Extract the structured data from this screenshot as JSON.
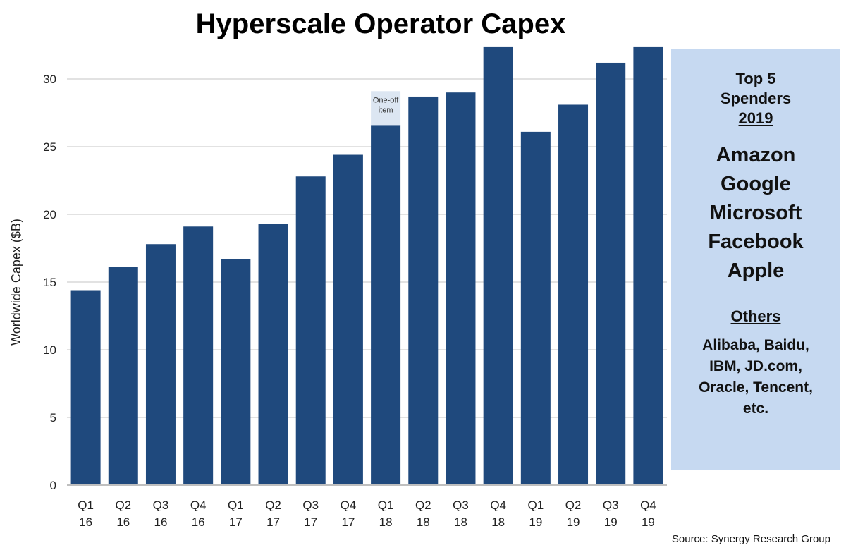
{
  "chart_data": {
    "type": "bar",
    "title": "Hyperscale Operator Capex",
    "ylabel": "Worldwide Capex ($B)",
    "xlabel": "",
    "ylim": [
      0,
      32.5
    ],
    "yticks": [
      0,
      5,
      10,
      15,
      20,
      25,
      30
    ],
    "grid": true,
    "categories": [
      [
        "Q1",
        "16"
      ],
      [
        "Q2",
        "16"
      ],
      [
        "Q3",
        "16"
      ],
      [
        "Q4",
        "16"
      ],
      [
        "Q1",
        "17"
      ],
      [
        "Q2",
        "17"
      ],
      [
        "Q3",
        "17"
      ],
      [
        "Q4",
        "17"
      ],
      [
        "Q1",
        "18"
      ],
      [
        "Q2",
        "18"
      ],
      [
        "Q3",
        "18"
      ],
      [
        "Q4",
        "18"
      ],
      [
        "Q1",
        "19"
      ],
      [
        "Q2",
        "19"
      ],
      [
        "Q3",
        "19"
      ],
      [
        "Q4",
        "19"
      ]
    ],
    "values": [
      14.4,
      16.1,
      17.8,
      19.1,
      16.7,
      19.3,
      22.8,
      24.4,
      26.6,
      28.7,
      29.0,
      32.4,
      26.1,
      28.1,
      31.2,
      32.4
    ],
    "bar_color": "#1f497d",
    "annotation": {
      "category_index": 8,
      "text": [
        "One-off",
        "item"
      ],
      "from": 26.6,
      "to": 29.1,
      "color": "#dce6f2"
    }
  },
  "panel": {
    "heading": [
      "Top 5",
      "Spenders"
    ],
    "year": "2019",
    "top5": [
      "Amazon",
      "Google",
      "Microsoft",
      "Facebook",
      "Apple"
    ],
    "others_label": "Others",
    "others": [
      "Alibaba, Baidu,",
      "IBM, JD.com,",
      "Oracle, Tencent,",
      "etc."
    ],
    "color": "#c6d9f1"
  },
  "source": "Source: Synergy Research Group"
}
